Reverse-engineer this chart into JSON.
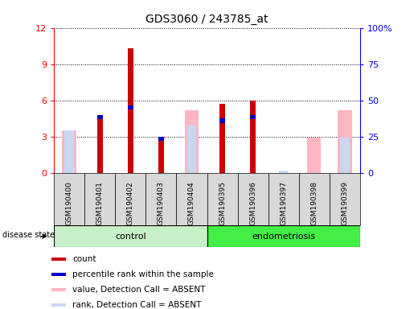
{
  "title": "GDS3060 / 243785_at",
  "samples": [
    "GSM190400",
    "GSM190401",
    "GSM190402",
    "GSM190403",
    "GSM190404",
    "GSM190395",
    "GSM190396",
    "GSM190397",
    "GSM190398",
    "GSM190399"
  ],
  "count_values": [
    0,
    4.8,
    10.3,
    3.0,
    0,
    5.7,
    6.0,
    0,
    0,
    0
  ],
  "percentile_values": [
    0,
    4.8,
    5.6,
    3.0,
    0,
    4.5,
    4.8,
    0,
    0,
    0
  ],
  "absent_value_values": [
    3.5,
    0,
    0,
    0,
    5.2,
    0,
    0,
    0,
    2.9,
    5.2
  ],
  "absent_rank_values": [
    3.5,
    0,
    0,
    0,
    4.0,
    0,
    0,
    0.2,
    0,
    2.9
  ],
  "ylim_left": [
    0,
    12
  ],
  "ylim_right": [
    0,
    100
  ],
  "yticks_left": [
    0,
    3,
    6,
    9,
    12
  ],
  "yticks_right": [
    0,
    25,
    50,
    75,
    100
  ],
  "ytick_labels_right": [
    "0",
    "25",
    "50",
    "75",
    "100%"
  ],
  "color_count": "#cc0000",
  "color_percentile": "#0000cc",
  "color_absent_value": "#ffb6c1",
  "color_absent_rank": "#c8d8f0",
  "plot_bg": "#ffffff",
  "sample_box_bg": "#d8d8d8",
  "group_control_color": "#c8f0c8",
  "group_endo_color": "#44ee44",
  "legend_labels": [
    "count",
    "percentile rank within the sample",
    "value, Detection Call = ABSENT",
    "rank, Detection Call = ABSENT"
  ]
}
